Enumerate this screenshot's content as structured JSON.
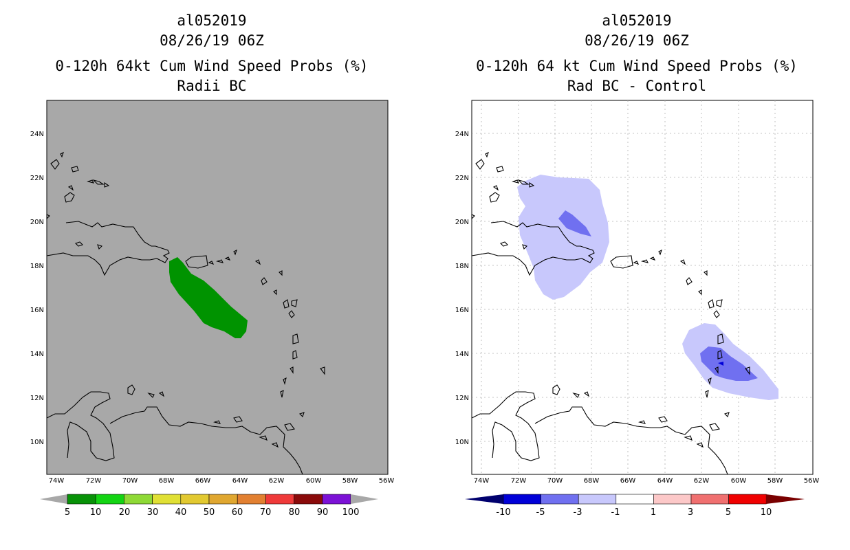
{
  "left_panel": {
    "storm_id": "al052019",
    "datetime": "08/26/19 06Z",
    "title_line": "0-120h 64kt Cum Wind Speed Probs (%)",
    "subtitle": "Radii BC",
    "colorbar": {
      "labels": [
        "5",
        "10",
        "20",
        "30",
        "40",
        "50",
        "60",
        "70",
        "80",
        "90",
        "100"
      ],
      "colors": [
        "#089208",
        "#13d413",
        "#8ed936",
        "#e0e035",
        "#e2c931",
        "#e0a730",
        "#e28031",
        "#ef3a3a",
        "#8a0a0a",
        "#7c12d6"
      ]
    },
    "field_color": "#009300"
  },
  "right_panel": {
    "storm_id": "al052019",
    "datetime": "08/26/19 06Z",
    "title_line": "0-120h 64 kt Cum Wind Speed Probs (%)",
    "subtitle": "Rad BC - Control",
    "colorbar": {
      "labels": [
        "-10",
        "-5",
        "-3",
        "-1",
        "1",
        "3",
        "5",
        "10"
      ],
      "colors": [
        "#0000d8",
        "#7070f0",
        "#c8c8fc",
        "#ffffff",
        "#fcc8c8",
        "#f07070",
        "#f00000"
      ]
    }
  },
  "axes": {
    "lon_labels": [
      "74W",
      "72W",
      "70W",
      "68W",
      "66W",
      "64W",
      "62W",
      "60W",
      "58W",
      "56W"
    ],
    "lat_labels": [
      "24N",
      "22N",
      "20N",
      "18N",
      "16N",
      "14N",
      "12N",
      "10N"
    ]
  }
}
